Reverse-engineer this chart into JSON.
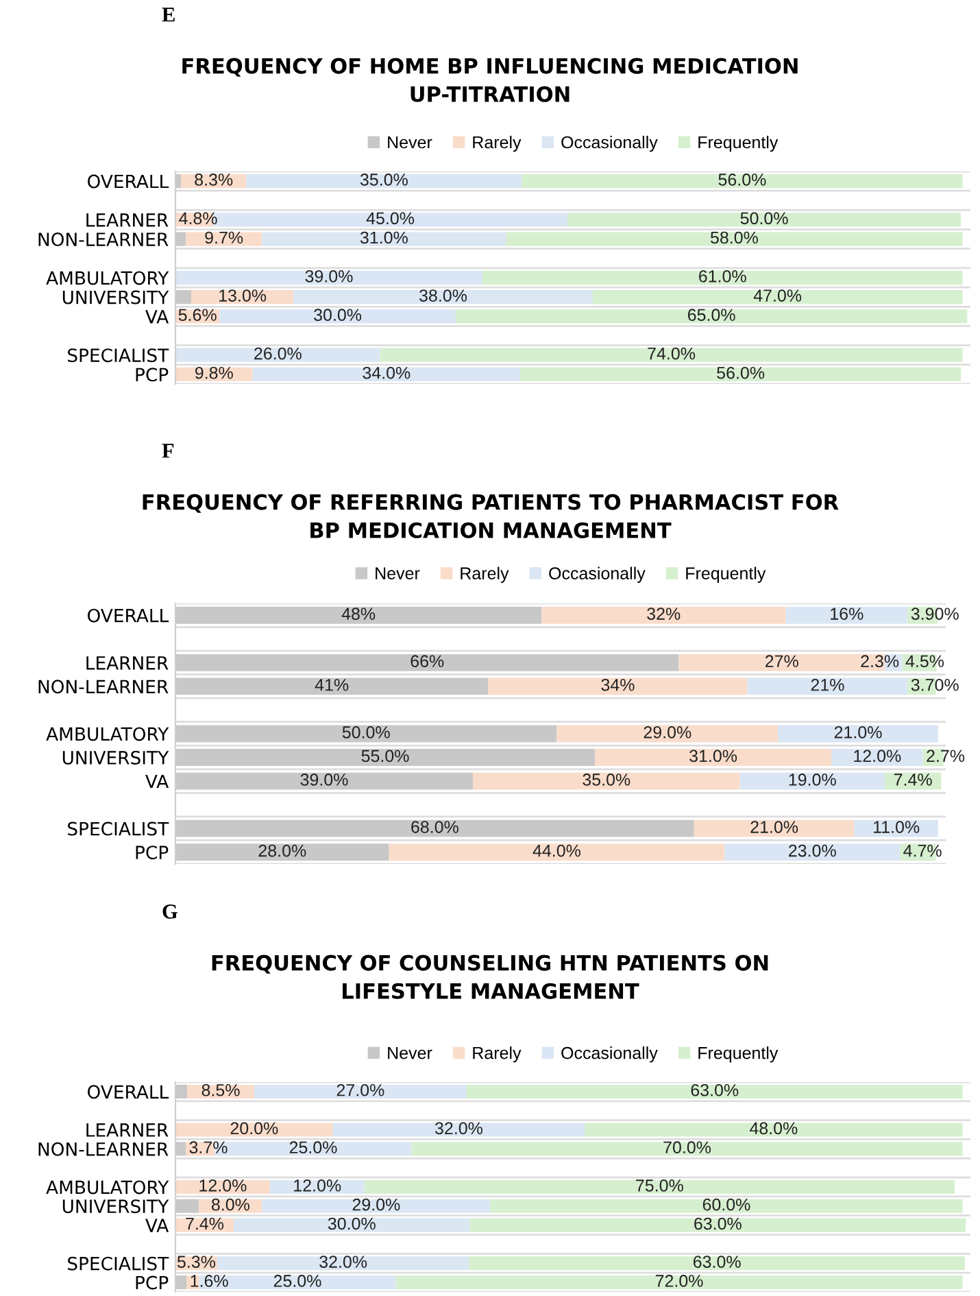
{
  "chart_data": [
    {
      "type": "bar",
      "orientation": "horizontal",
      "stacked": true,
      "title": "FREQUENCY OF HOME BP INFLUENCING MEDICATION\nUP-TITRATION",
      "annotations": [
        "E"
      ],
      "legend": "top",
      "grid": "y",
      "tick_labels": "y",
      "xlim": [
        0,
        101
      ],
      "categories": [
        "OVERALL",
        null,
        "LEARNER",
        "NON-LEARNER",
        null,
        "AMBULATORY",
        "UNIVERSITY",
        "VA",
        null,
        "SPECIALIST",
        "PCP"
      ],
      "series": [
        {
          "name": "Never",
          "color": "#c8c8c8",
          "values": [
            0.7,
            null,
            0,
            1.3,
            null,
            0,
            2,
            0,
            null,
            0,
            0
          ],
          "value_labels": [
            null,
            null,
            null,
            null,
            null,
            null,
            null,
            null,
            null,
            null,
            null
          ]
        },
        {
          "name": "Rarely",
          "color": "#fadccb",
          "values": [
            8.3,
            null,
            4.8,
            9.7,
            null,
            0,
            13.0,
            5.6,
            null,
            0,
            9.8
          ],
          "value_labels": [
            "8.3%",
            null,
            "4.8%",
            "9.7%",
            null,
            null,
            "13.0%",
            "5.6%",
            null,
            null,
            "9.8%"
          ]
        },
        {
          "name": "Occasionally",
          "color": "#dae6f3",
          "values": [
            35.0,
            null,
            45.0,
            31.0,
            null,
            39.0,
            38.0,
            30.0,
            null,
            26.0,
            34.0
          ],
          "value_labels": [
            "35.0%",
            null,
            "45.0%",
            "31.0%",
            null,
            "39.0%",
            "38.0%",
            "30.0%",
            null,
            "26.0%",
            "34.0%"
          ]
        },
        {
          "name": "Frequently",
          "color": "#d6efcf",
          "values": [
            56.0,
            null,
            50.0,
            58.0,
            null,
            61.0,
            47.0,
            65.0,
            null,
            74.0,
            56.0
          ],
          "value_labels": [
            "56.0%",
            null,
            "50.0%",
            "58.0%",
            null,
            "61.0%",
            "47.0%",
            "65.0%",
            null,
            "74.0%",
            "56.0%"
          ]
        }
      ]
    },
    {
      "type": "bar",
      "orientation": "horizontal",
      "stacked": true,
      "title": "FREQUENCY OF REFERRING PATIENTS TO PHARMACIST FOR\nBP MEDICATION MANAGEMENT",
      "annotations": [
        "F"
      ],
      "legend": "top",
      "grid": "y",
      "tick_labels": "y",
      "xlim": [
        0,
        101
      ],
      "categories": [
        "OVERALL",
        null,
        "LEARNER",
        "NON-LEARNER",
        null,
        "AMBULATORY",
        "UNIVERSITY",
        "VA",
        null,
        "SPECIALIST",
        "PCP"
      ],
      "series": [
        {
          "name": "Never",
          "color": "#c8c8c8",
          "values": [
            48,
            null,
            66,
            41,
            null,
            50.0,
            55.0,
            39.0,
            null,
            68.0,
            28.0
          ],
          "value_labels": [
            "48%",
            null,
            "66%",
            "41%",
            null,
            "50.0%",
            "55.0%",
            "39.0%",
            null,
            "68.0%",
            "28.0%"
          ]
        },
        {
          "name": "Rarely",
          "color": "#fadccb",
          "values": [
            32,
            null,
            27,
            34,
            null,
            29.0,
            31.0,
            35.0,
            null,
            21.0,
            44.0
          ],
          "value_labels": [
            "32%",
            null,
            "27%",
            "34%",
            null,
            "29.0%",
            "31.0%",
            "35.0%",
            null,
            "21.0%",
            "44.0%"
          ]
        },
        {
          "name": "Occasionally",
          "color": "#dae6f3",
          "values": [
            16,
            null,
            2.3,
            21,
            null,
            21.0,
            12.0,
            19.0,
            null,
            11.0,
            23.0
          ],
          "value_labels": [
            "16%",
            null,
            "2.3%",
            "21%",
            null,
            "21.0%",
            "12.0%",
            "19.0%",
            null,
            "11.0%",
            "23.0%"
          ]
        },
        {
          "name": "Frequently",
          "color": "#d6efcf",
          "values": [
            3.9,
            null,
            4.5,
            3.7,
            null,
            0,
            2.7,
            7.4,
            null,
            0,
            4.7
          ],
          "value_labels": [
            "3.90%",
            null,
            "4.5%",
            "3.70%",
            null,
            null,
            "2.7%",
            "7.4%",
            null,
            null,
            "4.7%"
          ]
        }
      ]
    },
    {
      "type": "bar",
      "orientation": "horizontal",
      "stacked": true,
      "title": "FREQUENCY OF COUNSELING HTN PATIENTS ON\nLIFESTYLE MANAGEMENT",
      "annotations": [
        "G"
      ],
      "legend": "top",
      "grid": "y",
      "tick_labels": "y",
      "xlim": [
        0,
        101
      ],
      "categories": [
        "OVERALL",
        null,
        "LEARNER",
        "NON-LEARNER",
        null,
        "AMBULATORY",
        "UNIVERSITY",
        "VA",
        null,
        "SPECIALIST",
        "PCP"
      ],
      "series": [
        {
          "name": "Never",
          "color": "#c8c8c8",
          "values": [
            1.5,
            null,
            0,
            1.3,
            null,
            0,
            3,
            0,
            null,
            0,
            1.4
          ],
          "value_labels": [
            null,
            null,
            null,
            null,
            null,
            null,
            null,
            null,
            null,
            null,
            null
          ]
        },
        {
          "name": "Rarely",
          "color": "#fadccb",
          "values": [
            8.5,
            null,
            20.0,
            3.7,
            null,
            12.0,
            8.0,
            7.4,
            null,
            5.3,
            1.6
          ],
          "value_labels": [
            "8.5%",
            null,
            "20.0%",
            "3.7%",
            null,
            "12.0%",
            "8.0%",
            "7.4%",
            null,
            "5.3%",
            "1.6%"
          ]
        },
        {
          "name": "Occasionally",
          "color": "#dae6f3",
          "values": [
            27.0,
            null,
            32.0,
            25.0,
            null,
            12.0,
            29.0,
            30.0,
            null,
            32.0,
            25.0
          ],
          "value_labels": [
            "27.0%",
            null,
            "32.0%",
            "25.0%",
            null,
            "12.0%",
            "29.0%",
            "30.0%",
            null,
            "32.0%",
            "25.0%"
          ]
        },
        {
          "name": "Frequently",
          "color": "#d6efcf",
          "values": [
            63.0,
            null,
            48.0,
            70.0,
            null,
            75.0,
            60.0,
            63.0,
            null,
            63.0,
            72.0
          ],
          "value_labels": [
            "63.0%",
            null,
            "48.0%",
            "70.0%",
            null,
            "75.0%",
            "60.0%",
            "63.0%",
            null,
            "63.0%",
            "72.0%"
          ]
        }
      ]
    }
  ]
}
